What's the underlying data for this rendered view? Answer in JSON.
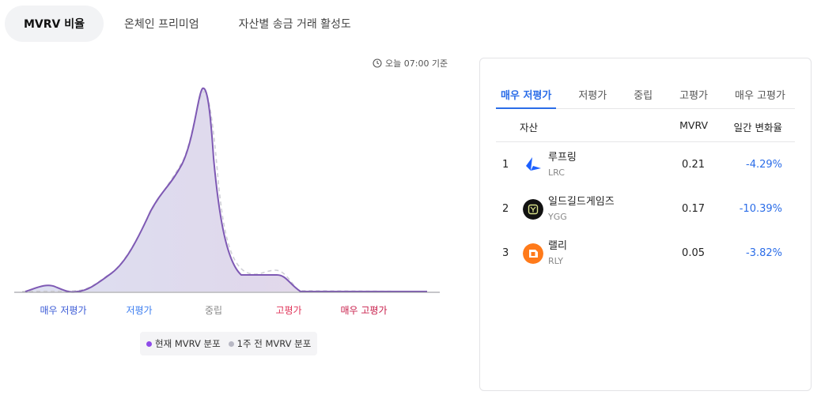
{
  "tabs": [
    {
      "label": "MVRV 비율",
      "active": true
    },
    {
      "label": "온체인 프리미엄",
      "active": false
    },
    {
      "label": "자산별 송금 거래 활성도",
      "active": false
    }
  ],
  "timestamp": "오늘 07:00 기준",
  "chart": {
    "categories": [
      "매우 저평가",
      "저평가",
      "중립",
      "고평가",
      "매우 고평가"
    ],
    "category_colors": [
      "#3b5bd6",
      "#3d7ef0",
      "#8a8a8a",
      "#e0355a",
      "#c81d4a"
    ],
    "legend": [
      {
        "label": "현재 MVRV 분포",
        "color": "#8e4be8"
      },
      {
        "label": "1주 전 MVRV 분포",
        "color": "#b8b8c4"
      }
    ]
  },
  "panel": {
    "tabs": [
      {
        "label": "매우 저평가",
        "active": true
      },
      {
        "label": "저평가",
        "active": false
      },
      {
        "label": "중립",
        "active": false
      },
      {
        "label": "고평가",
        "active": false
      },
      {
        "label": "매우 고평가",
        "active": false
      }
    ],
    "columns": {
      "asset": "자산",
      "mvrv": "MVRV",
      "change": "일간 변화율"
    },
    "rows": [
      {
        "rank": "1",
        "name": "루프링",
        "ticker": "LRC",
        "mvrv": "0.21",
        "change": "-4.29%",
        "icon": "loopring-icon"
      },
      {
        "rank": "2",
        "name": "일드길드게임즈",
        "ticker": "YGG",
        "mvrv": "0.17",
        "change": "-10.39%",
        "icon": "ygg-icon"
      },
      {
        "rank": "3",
        "name": "랠리",
        "ticker": "RLY",
        "mvrv": "0.05",
        "change": "-3.82%",
        "icon": "rally-icon"
      }
    ]
  },
  "colors": {
    "accent": "#2b6de8",
    "negative_change": "#2b6de8"
  }
}
